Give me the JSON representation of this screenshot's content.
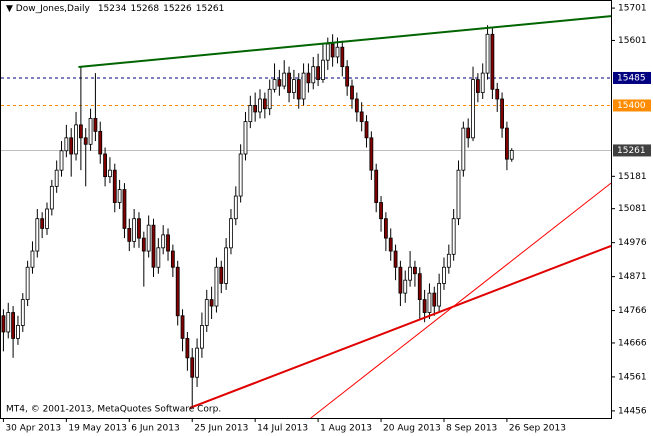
{
  "chart_data": {
    "type": "candlestick",
    "title": "Dow_Jones,Daily",
    "footer": "MT4, © 2001-2013, MetaQuotes Software Corp.",
    "open": [
      14750,
      14700,
      14760,
      14680,
      14720,
      14800,
      14900,
      14950,
      15050,
      15020,
      15080,
      15150,
      15200,
      15260,
      15300,
      15250,
      15340,
      15300,
      15280,
      15360,
      15320,
      15250,
      15180,
      15200,
      15100,
      15140,
      15020,
      14980,
      15050,
      14990,
      14950,
      15030,
      14900,
      14960,
      15000,
      14950,
      14900,
      14750,
      14680,
      14620,
      14560,
      14650,
      14720,
      14800,
      14780,
      14900,
      14850,
      14960,
      15050,
      15120,
      15250,
      15350,
      15400,
      15380,
      15420,
      15390,
      15450,
      15480,
      15460,
      15500,
      15440,
      15480,
      15420,
      15500,
      15470,
      15520,
      15480,
      15540,
      15590,
      15550,
      15580,
      15520,
      15460,
      15420,
      15380,
      15350,
      15300,
      15200,
      15100,
      15050,
      14990,
      14950,
      14900,
      14820,
      14860,
      14900,
      14880,
      14800,
      14760,
      14820,
      14780,
      14850,
      14900,
      14940,
      15050,
      15200,
      15330,
      15300,
      15480,
      15440,
      15500,
      15620,
      15450,
      15420,
      15330,
      15234
    ],
    "high": [
      14770,
      14790,
      14780,
      14750,
      14820,
      14920,
      14980,
      15080,
      15070,
      15100,
      15170,
      15230,
      15290,
      15340,
      15330,
      15380,
      15519,
      15330,
      15390,
      15500,
      15350,
      15270,
      15240,
      15220,
      15170,
      15160,
      15050,
      15080,
      15070,
      15010,
      15060,
      15050,
      14990,
      15030,
      15020,
      14970,
      14920,
      14770,
      14700,
      14650,
      14680,
      14760,
      14830,
      14840,
      14930,
      14920,
      14990,
      15080,
      15150,
      15280,
      15380,
      15430,
      15440,
      15450,
      15440,
      15480,
      15530,
      15510,
      15540,
      15520,
      15510,
      15500,
      15530,
      15530,
      15550,
      15560,
      15590,
      15610,
      15620,
      15610,
      15600,
      15540,
      15480,
      15440,
      15410,
      15370,
      15320,
      15220,
      15120,
      15070,
      15020,
      14970,
      14920,
      14890,
      14950,
      14920,
      14900,
      14830,
      14850,
      14840,
      14880,
      14930,
      14970,
      15080,
      15230,
      15350,
      15360,
      15520,
      15500,
      15530,
      15648,
      15640,
      15470,
      15440,
      15350,
      15268
    ],
    "low": [
      14640,
      14680,
      14620,
      14660,
      14700,
      14780,
      14880,
      14930,
      14990,
      15000,
      15060,
      15130,
      15180,
      15240,
      15180,
      15230,
      15200,
      15150,
      15260,
      15290,
      15220,
      15150,
      15160,
      15070,
      15080,
      14990,
      14950,
      14960,
      14960,
      14840,
      14930,
      14870,
      14880,
      14940,
      14920,
      14870,
      14720,
      14640,
      14580,
      14470,
      14530,
      14620,
      14700,
      14740,
      14760,
      14820,
      14830,
      14940,
      15030,
      15100,
      15230,
      15330,
      15350,
      15360,
      15360,
      15370,
      15440,
      15430,
      15450,
      15410,
      15420,
      15390,
      15400,
      15440,
      15450,
      15460,
      15470,
      15510,
      15520,
      15530,
      15490,
      15430,
      15390,
      15350,
      15320,
      15270,
      15170,
      15070,
      15010,
      14950,
      14920,
      14860,
      14780,
      14790,
      14840,
      14840,
      14740,
      14730,
      14740,
      14750,
      14760,
      14830,
      14880,
      14920,
      15030,
      15180,
      15270,
      15290,
      15410,
      15420,
      15480,
      15420,
      15380,
      15300,
      15200,
      15226
    ],
    "close": [
      14700,
      14760,
      14680,
      14720,
      14800,
      14900,
      14950,
      15050,
      15020,
      15080,
      15150,
      15200,
      15260,
      15300,
      15250,
      15340,
      15300,
      15280,
      15360,
      15320,
      15250,
      15180,
      15200,
      15100,
      15140,
      15020,
      14980,
      15050,
      14990,
      14950,
      15030,
      14900,
      14960,
      15000,
      14950,
      14900,
      14750,
      14680,
      14620,
      14560,
      14650,
      14720,
      14800,
      14780,
      14900,
      14850,
      14960,
      15050,
      15120,
      15250,
      15350,
      15400,
      15380,
      15420,
      15390,
      15450,
      15480,
      15460,
      15500,
      15440,
      15480,
      15420,
      15500,
      15470,
      15520,
      15480,
      15540,
      15590,
      15550,
      15580,
      15520,
      15460,
      15420,
      15380,
      15350,
      15300,
      15200,
      15100,
      15050,
      14990,
      14950,
      14900,
      14820,
      14860,
      14900,
      14880,
      14800,
      14760,
      14820,
      14780,
      14850,
      14900,
      14940,
      15050,
      15200,
      15330,
      15300,
      15480,
      15440,
      15500,
      15620,
      15450,
      15420,
      15330,
      15234,
      15261
    ],
    "up_color": "#ffffff",
    "down_color": "#800000",
    "wick_color": "#000000",
    "xlim": [
      -0.5,
      125.5
    ],
    "xticks": [
      {
        "value": 0,
        "label": "30 Apr 2013"
      },
      {
        "value": 13,
        "label": "19 May 2013"
      },
      {
        "value": 26,
        "label": "6 Jun 2013"
      },
      {
        "value": 39,
        "label": "25 Jun 2013"
      },
      {
        "value": 52,
        "label": "14 Jul 2013"
      },
      {
        "value": 65,
        "label": "1 Aug 2013"
      },
      {
        "value": 78,
        "label": "20 Aug 2013"
      },
      {
        "value": 91,
        "label": "8 Sep 2013"
      },
      {
        "value": 104,
        "label": "26 Sep 2013"
      }
    ],
    "ylim": [
      14434,
      15726
    ],
    "yticks": [
      15701,
      15601,
      15181,
      15081,
      14976,
      14871,
      14766,
      14666,
      14561,
      14456
    ],
    "grid": false,
    "hlines": [
      {
        "value": 15485,
        "color": "#000080",
        "dash": true
      },
      {
        "value": 15400,
        "color": "#ff8c00",
        "dash": true
      },
      {
        "value": 15261,
        "color": "#c0c0c0",
        "dash": false
      }
    ],
    "trendlines": [
      {
        "x": [
          15.5,
          125.5
        ],
        "y": [
          15519,
          15676
        ],
        "color": "#006400",
        "width": 2
      },
      {
        "x": [
          38.5,
          125.5
        ],
        "y": [
          14465,
          14966
        ],
        "color": "#e00000",
        "width": 2
      },
      {
        "x": [
          63.5,
          125.5
        ],
        "y": [
          14434,
          15160
        ],
        "color": "#ff0000",
        "width": 1
      }
    ]
  }
}
